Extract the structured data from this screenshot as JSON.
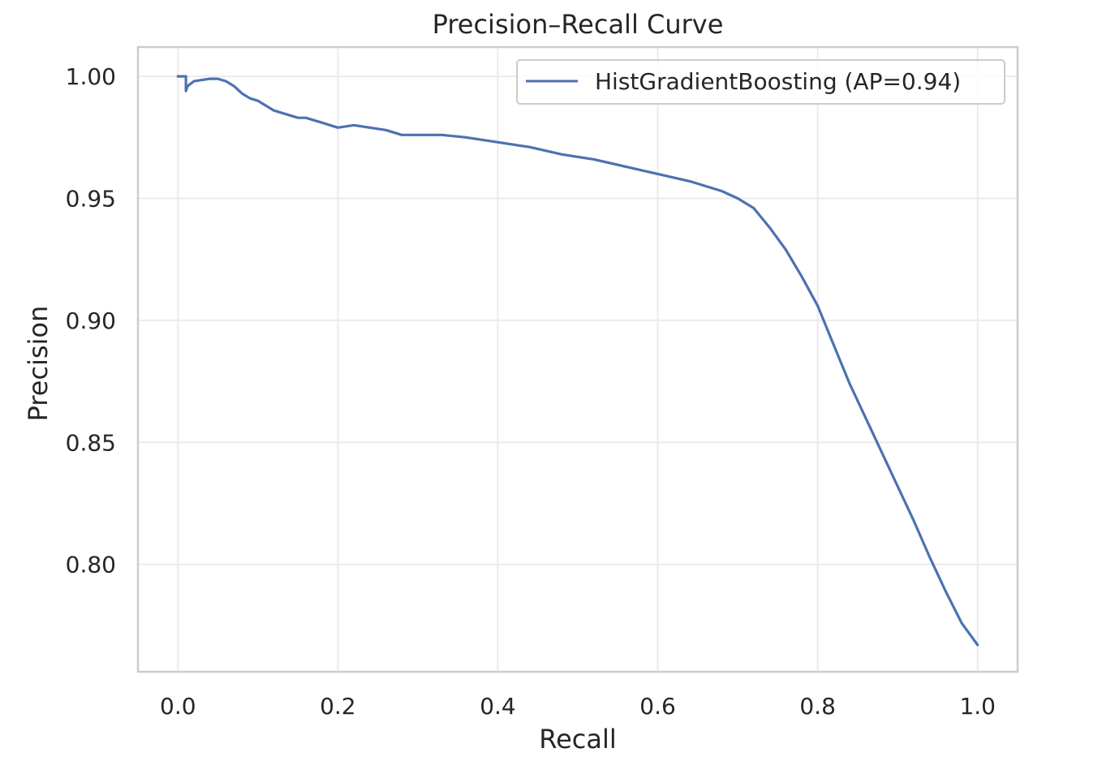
{
  "chart_data": {
    "type": "line",
    "title": "Precision–Recall Curve",
    "xlabel": "Recall",
    "ylabel": "Precision",
    "xlim": [
      -0.05,
      1.05
    ],
    "ylim": [
      0.756,
      1.012
    ],
    "grid": true,
    "legend_position": "top-right",
    "x_ticks": [
      {
        "value": 0.0,
        "label": "0.0"
      },
      {
        "value": 0.2,
        "label": "0.2"
      },
      {
        "value": 0.4,
        "label": "0.4"
      },
      {
        "value": 0.6,
        "label": "0.6"
      },
      {
        "value": 0.8,
        "label": "0.8"
      },
      {
        "value": 1.0,
        "label": "1.0"
      }
    ],
    "y_ticks": [
      {
        "value": 0.8,
        "label": "0.80"
      },
      {
        "value": 0.85,
        "label": "0.85"
      },
      {
        "value": 0.9,
        "label": "0.90"
      },
      {
        "value": 0.95,
        "label": "0.95"
      },
      {
        "value": 1.0,
        "label": "1.00"
      }
    ],
    "series": [
      {
        "name": "HistGradientBoosting (AP=0.94)",
        "color": "#4c72b0",
        "x": [
          0.0,
          0.01,
          0.01,
          0.012,
          0.02,
          0.03,
          0.04,
          0.05,
          0.06,
          0.07,
          0.08,
          0.09,
          0.1,
          0.11,
          0.12,
          0.13,
          0.14,
          0.15,
          0.16,
          0.18,
          0.2,
          0.22,
          0.24,
          0.26,
          0.28,
          0.3,
          0.33,
          0.36,
          0.4,
          0.44,
          0.48,
          0.52,
          0.56,
          0.6,
          0.64,
          0.68,
          0.7,
          0.72,
          0.74,
          0.76,
          0.78,
          0.8,
          0.82,
          0.84,
          0.86,
          0.88,
          0.9,
          0.92,
          0.94,
          0.96,
          0.98,
          1.0
        ],
        "y": [
          1.0,
          1.0,
          0.994,
          0.996,
          0.998,
          0.9985,
          0.999,
          0.999,
          0.998,
          0.996,
          0.993,
          0.991,
          0.99,
          0.988,
          0.986,
          0.985,
          0.984,
          0.983,
          0.983,
          0.981,
          0.979,
          0.98,
          0.979,
          0.978,
          0.976,
          0.976,
          0.976,
          0.975,
          0.973,
          0.971,
          0.968,
          0.966,
          0.963,
          0.96,
          0.957,
          0.953,
          0.95,
          0.946,
          0.938,
          0.929,
          0.918,
          0.906,
          0.89,
          0.874,
          0.86,
          0.846,
          0.832,
          0.818,
          0.803,
          0.789,
          0.776,
          0.767
        ]
      }
    ]
  }
}
